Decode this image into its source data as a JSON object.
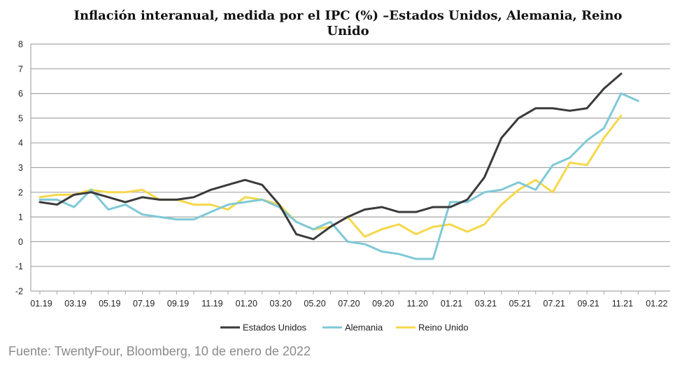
{
  "chart_data": {
    "type": "line",
    "title_line1": "Inflación interanual, medida por el IPC (%) –Estados Unidos, Alemania, Reino",
    "title_line2": "Unido",
    "xlabel": "",
    "ylabel": "",
    "ylim": [
      -2,
      8
    ],
    "yticks": [
      -2,
      -1,
      0,
      1,
      2,
      3,
      4,
      5,
      6,
      7,
      8
    ],
    "grid": true,
    "legend_position": "bottom-center",
    "x_tick_labels": [
      "01.19",
      "03.19",
      "05.19",
      "07.19",
      "09.19",
      "11.19",
      "01.20",
      "03.20",
      "05.20",
      "07.20",
      "09.20",
      "11.20",
      "01.21",
      "03.21",
      "05.21",
      "07.21",
      "09.21",
      "11.21",
      "01.22"
    ],
    "x_months": [
      "01.19",
      "02.19",
      "03.19",
      "04.19",
      "05.19",
      "06.19",
      "07.19",
      "08.19",
      "09.19",
      "10.19",
      "11.19",
      "12.19",
      "01.20",
      "02.20",
      "03.20",
      "04.20",
      "05.20",
      "06.20",
      "07.20",
      "08.20",
      "09.20",
      "10.20",
      "11.20",
      "12.20",
      "01.21",
      "02.21",
      "03.21",
      "04.21",
      "05.21",
      "06.21",
      "07.21",
      "08.21",
      "09.21",
      "10.21",
      "11.21",
      "12.21",
      "01.22"
    ],
    "series": [
      {
        "name": "Estados Unidos",
        "color": "#3a3a3a",
        "values": [
          1.6,
          1.5,
          1.9,
          2.0,
          1.8,
          1.6,
          1.8,
          1.7,
          1.7,
          1.8,
          2.1,
          2.3,
          2.5,
          2.3,
          1.5,
          0.3,
          0.1,
          0.6,
          1.0,
          1.3,
          1.4,
          1.2,
          1.2,
          1.4,
          1.4,
          1.7,
          2.6,
          4.2,
          5.0,
          5.4,
          5.4,
          5.3,
          5.4,
          6.2,
          6.8,
          null,
          null
        ]
      },
      {
        "name": "Alemania",
        "color": "#7fc9d6",
        "values": [
          1.7,
          1.7,
          1.4,
          2.1,
          1.3,
          1.5,
          1.1,
          1.0,
          0.9,
          0.9,
          1.2,
          1.5,
          1.6,
          1.7,
          1.4,
          0.8,
          0.5,
          0.8,
          0.0,
          -0.1,
          -0.4,
          -0.5,
          -0.7,
          -0.7,
          1.6,
          1.6,
          2.0,
          2.1,
          2.4,
          2.1,
          3.1,
          3.4,
          4.1,
          4.6,
          6.0,
          5.7,
          null
        ]
      },
      {
        "name": "Reino Unido",
        "color": "#f5d84a",
        "values": [
          1.8,
          1.9,
          1.9,
          2.1,
          2.0,
          2.0,
          2.1,
          1.7,
          1.7,
          1.5,
          1.5,
          1.3,
          1.8,
          1.7,
          1.5,
          0.8,
          0.5,
          0.6,
          1.0,
          0.2,
          0.5,
          0.7,
          0.3,
          0.6,
          0.7,
          0.4,
          0.7,
          1.5,
          2.1,
          2.5,
          2.0,
          3.2,
          3.1,
          4.2,
          5.1,
          null,
          null
        ]
      }
    ]
  },
  "source_text": "Fuente: TwentyFour, Bloomberg, 10 de enero de 2022"
}
